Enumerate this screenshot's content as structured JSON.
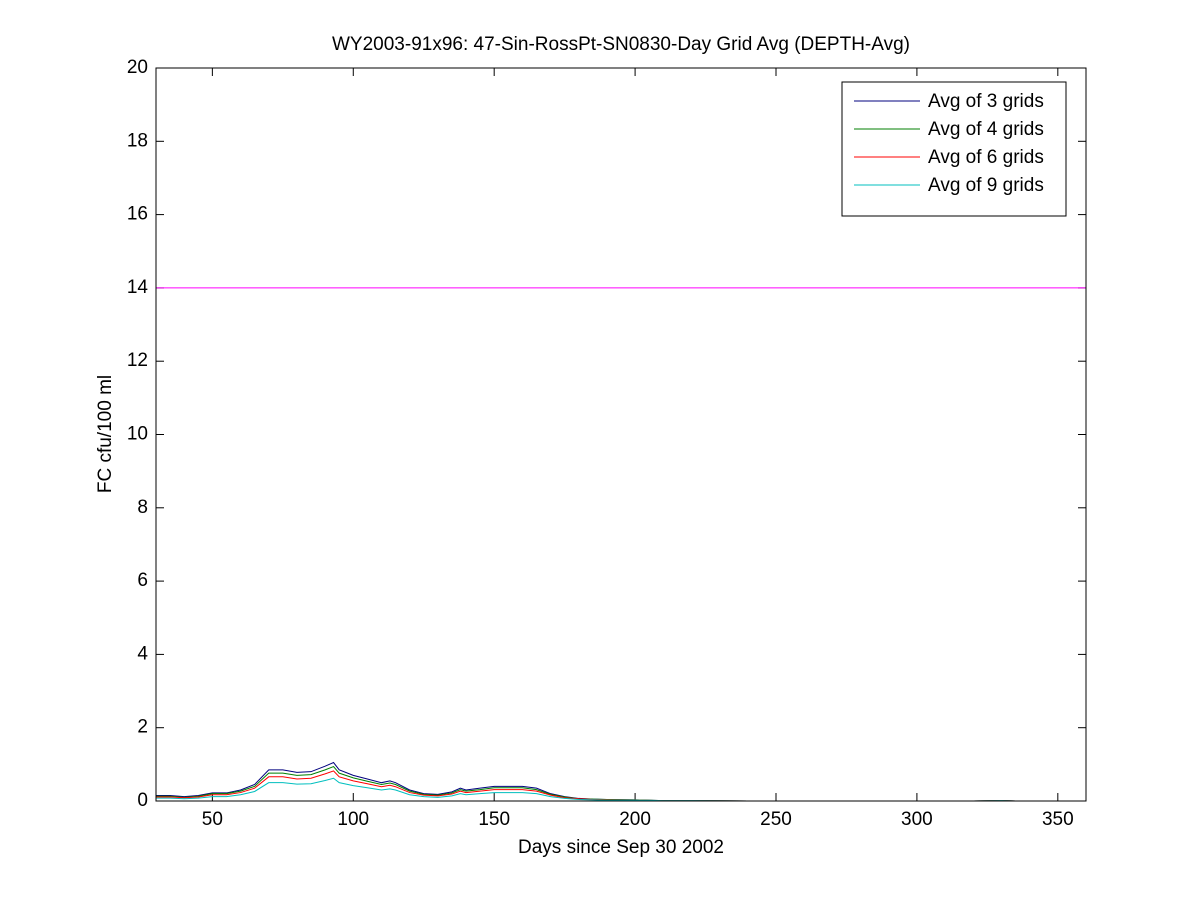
{
  "chart_data": {
    "type": "line",
    "title": "WY2003-91x96: 47-Sin-RossPt-SN0830-Day Grid Avg (DEPTH-Avg)",
    "x_label": "Days since Sep 30 2002",
    "y_label": "FC cfu/100 ml",
    "x": [
      30,
      35,
      40,
      45,
      50,
      55,
      60,
      65,
      70,
      75,
      80,
      85,
      90,
      93,
      95,
      100,
      105,
      110,
      113,
      115,
      120,
      125,
      130,
      135,
      138,
      140,
      145,
      150,
      155,
      160,
      165,
      170,
      175,
      180,
      185,
      190,
      200,
      210,
      220,
      240,
      280,
      320,
      330,
      335,
      360
    ],
    "series": [
      {
        "name": "Avg of 3 grids",
        "color": "#00007f",
        "values": [
          0.15,
          0.15,
          0.12,
          0.15,
          0.22,
          0.22,
          0.3,
          0.45,
          0.85,
          0.85,
          0.78,
          0.8,
          0.95,
          1.05,
          0.85,
          0.7,
          0.6,
          0.5,
          0.55,
          0.5,
          0.3,
          0.2,
          0.18,
          0.25,
          0.35,
          0.3,
          0.35,
          0.4,
          0.4,
          0.4,
          0.35,
          0.2,
          0.12,
          0.07,
          0.05,
          0.04,
          0.03,
          0.01,
          0.01,
          0,
          0,
          0,
          0.01,
          0,
          0
        ]
      },
      {
        "name": "Avg of 4 grids",
        "color": "#007f00",
        "values": [
          0.13,
          0.13,
          0.1,
          0.13,
          0.2,
          0.2,
          0.27,
          0.4,
          0.76,
          0.76,
          0.7,
          0.72,
          0.85,
          0.94,
          0.76,
          0.63,
          0.54,
          0.45,
          0.49,
          0.45,
          0.27,
          0.18,
          0.16,
          0.22,
          0.31,
          0.27,
          0.31,
          0.36,
          0.36,
          0.36,
          0.31,
          0.18,
          0.11,
          0.06,
          0.05,
          0.04,
          0.03,
          0.01,
          0.01,
          0,
          0,
          0,
          0.01,
          0,
          0
        ]
      },
      {
        "name": "Avg of 6 grids",
        "color": "#ff0000",
        "values": [
          0.11,
          0.11,
          0.09,
          0.11,
          0.17,
          0.17,
          0.23,
          0.35,
          0.66,
          0.66,
          0.6,
          0.62,
          0.74,
          0.82,
          0.66,
          0.55,
          0.47,
          0.39,
          0.43,
          0.39,
          0.23,
          0.16,
          0.14,
          0.19,
          0.27,
          0.23,
          0.27,
          0.31,
          0.31,
          0.31,
          0.27,
          0.16,
          0.09,
          0.06,
          0.04,
          0.03,
          0.02,
          0.01,
          0.01,
          0,
          0,
          0,
          0.01,
          0,
          0
        ]
      },
      {
        "name": "Avg of 9 grids",
        "color": "#00bfbf",
        "values": [
          0.08,
          0.08,
          0.06,
          0.08,
          0.12,
          0.12,
          0.17,
          0.26,
          0.5,
          0.5,
          0.46,
          0.47,
          0.56,
          0.62,
          0.5,
          0.42,
          0.36,
          0.3,
          0.33,
          0.3,
          0.17,
          0.12,
          0.1,
          0.14,
          0.2,
          0.17,
          0.2,
          0.23,
          0.23,
          0.23,
          0.2,
          0.12,
          0.07,
          0.04,
          0.03,
          0.02,
          0.02,
          0.01,
          0.01,
          0,
          0,
          0,
          0.01,
          0,
          0
        ]
      }
    ],
    "reference_line": {
      "value": 14,
      "color": "#ff00ff"
    },
    "xlim": [
      30,
      360
    ],
    "ylim": [
      0,
      20
    ],
    "xticks": [
      50,
      100,
      150,
      200,
      250,
      300,
      350
    ],
    "yticks": [
      0,
      2,
      4,
      6,
      8,
      10,
      12,
      14,
      16,
      18,
      20
    ],
    "grid": false,
    "legend_position": "upper-right"
  }
}
